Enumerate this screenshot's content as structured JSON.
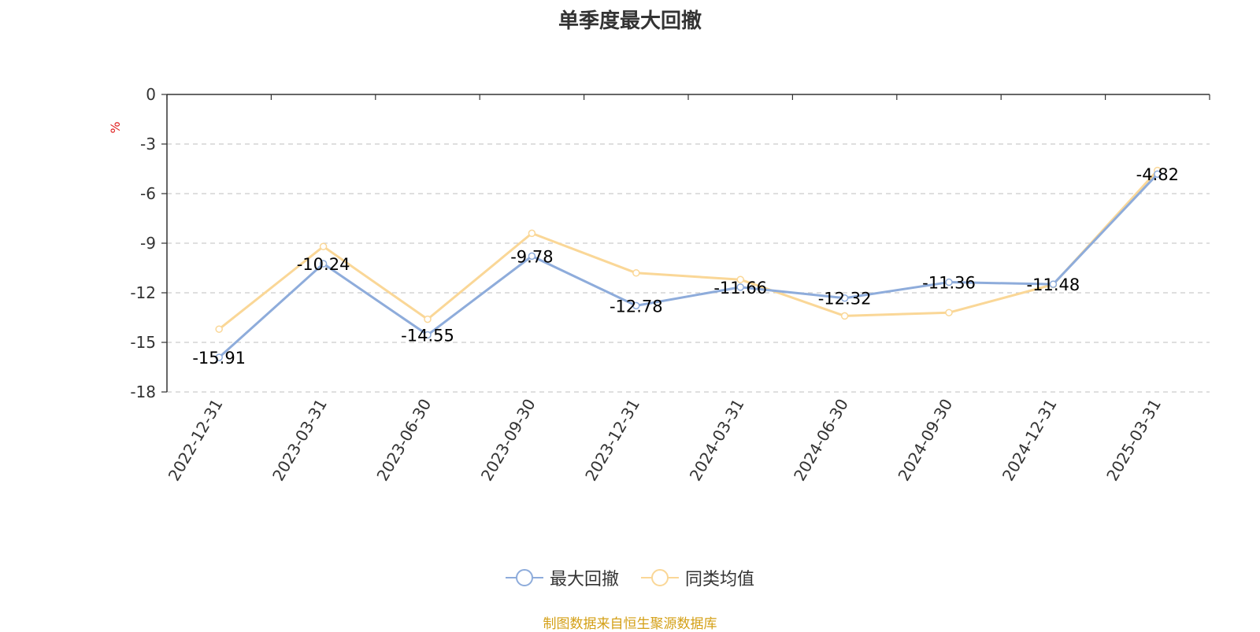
{
  "chart_data": {
    "type": "line",
    "title": "单季度最大回撤",
    "ylabel": "%",
    "categories": [
      "2022-12-31",
      "2023-03-31",
      "2023-06-30",
      "2023-09-30",
      "2023-12-31",
      "2024-03-31",
      "2024-06-30",
      "2024-09-30",
      "2024-12-31",
      "2025-03-31"
    ],
    "ylim": [
      -18,
      0
    ],
    "yticks": [
      0,
      -3,
      -6,
      -9,
      -12,
      -15,
      -18
    ],
    "grid": true,
    "legend_position": "bottom",
    "series": [
      {
        "name": "最大回撤",
        "color": "#8eacdb",
        "values": [
          -15.91,
          -10.24,
          -14.55,
          -9.78,
          -12.78,
          -11.66,
          -12.32,
          -11.36,
          -11.48,
          -4.82
        ],
        "labels": [
          "-15.91",
          "-10.24",
          "-14.55",
          "-9.78",
          "-12.78",
          "-11.66",
          "-12.32",
          "-11.36",
          "-11.48",
          "-4.82"
        ]
      },
      {
        "name": "同类均值",
        "color": "#fad797",
        "values": [
          -14.2,
          -9.2,
          -13.6,
          -8.4,
          -10.8,
          -11.2,
          -13.4,
          -13.2,
          -11.5,
          -4.6
        ]
      }
    ]
  },
  "source_note": "制图数据来自恒生聚源数据库",
  "colors": {
    "title": "#333333",
    "axis": "#333333",
    "grid": "#cccccc",
    "unit_label": "#e02020",
    "source_note": "#d4a017"
  }
}
